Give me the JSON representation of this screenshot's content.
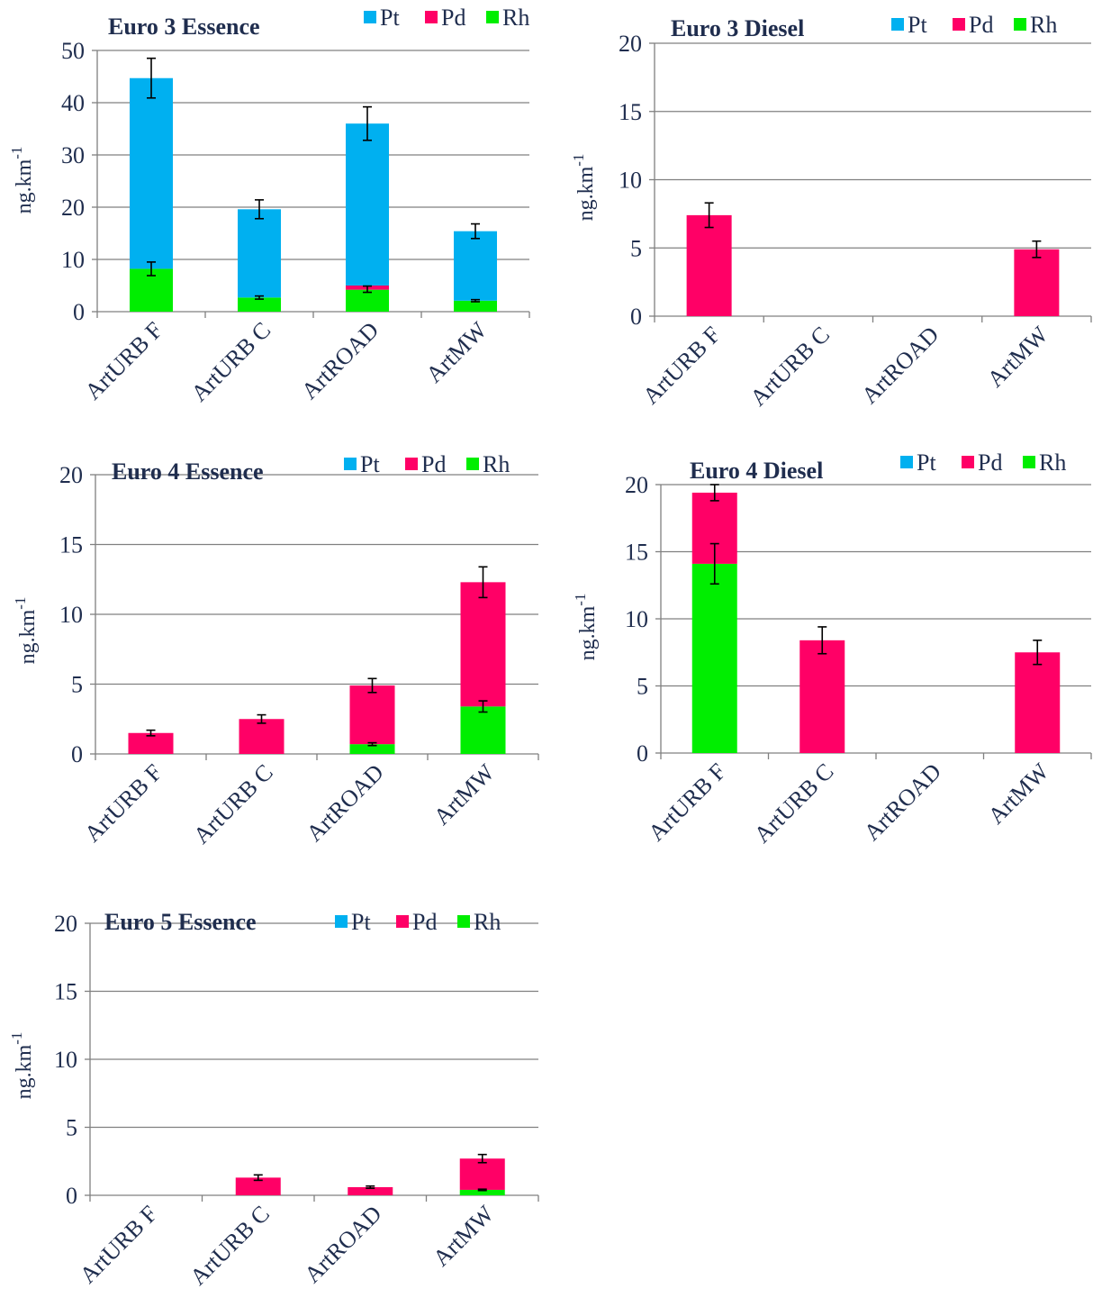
{
  "colors": {
    "Pt": "#00b0f0",
    "Pd": "#ff0066",
    "Rh": "#00ee00",
    "text": "#1f2d4e",
    "grid": "#808080",
    "axis": "#808080",
    "error": "#000000"
  },
  "chart_data": [
    {
      "type": "bar",
      "stacked": true,
      "title": "Euro 3 Essence",
      "ylabel": "ng.km",
      "ylabel_superscript": "-1",
      "categories": [
        "ArtURB F",
        "ArtURB C",
        "ArtROAD",
        "ArtMW"
      ],
      "ylim": [
        0,
        50
      ],
      "yticks": [
        "0",
        "10",
        "20",
        "30",
        "40",
        "50"
      ],
      "grid": true,
      "legend": "top-right",
      "series": [
        {
          "name": "Rh",
          "values": [
            8.2,
            2.7,
            4.2,
            2.1
          ]
        },
        {
          "name": "Pd",
          "values": [
            0,
            0,
            0.8,
            0
          ]
        },
        {
          "name": "Pt",
          "values": [
            36.5,
            16.9,
            31.0,
            13.3
          ]
        }
      ],
      "error_bars": [
        {
          "series": "Rh",
          "values": [
            8.2,
            2.7,
            4.3,
            2.1
          ],
          "err": [
            1.3,
            0.3,
            0.6,
            0.2
          ]
        },
        {
          "series": "Pt",
          "values": [
            44.7,
            19.6,
            36.0,
            15.4
          ],
          "err": [
            3.8,
            1.8,
            3.2,
            1.4
          ]
        }
      ]
    },
    {
      "type": "bar",
      "stacked": true,
      "title": "Euro 3 Diesel",
      "ylabel": "ng.km",
      "ylabel_superscript": "-1",
      "categories": [
        "ArtURB F",
        "ArtURB C",
        "ArtROAD",
        "ArtMW"
      ],
      "ylim": [
        0,
        20
      ],
      "yticks": [
        "0",
        "5",
        "10",
        "15",
        "20"
      ],
      "grid": true,
      "legend": "top-right",
      "series": [
        {
          "name": "Rh",
          "values": [
            0,
            0,
            0,
            0
          ]
        },
        {
          "name": "Pd",
          "values": [
            7.4,
            0,
            0,
            4.9
          ]
        },
        {
          "name": "Pt",
          "values": [
            0,
            0,
            0,
            0
          ]
        }
      ],
      "error_bars": [
        {
          "series": "Pd",
          "values": [
            7.4,
            null,
            null,
            4.9
          ],
          "err": [
            0.9,
            null,
            null,
            0.6
          ]
        }
      ]
    },
    {
      "type": "bar",
      "stacked": true,
      "title": "Euro 4 Essence",
      "ylabel": "ng.km",
      "ylabel_superscript": "-1",
      "categories": [
        "ArtURB F",
        "ArtURB C",
        "ArtROAD",
        "ArtMW"
      ],
      "ylim": [
        0,
        20
      ],
      "yticks": [
        "0",
        "5",
        "10",
        "15",
        "20"
      ],
      "grid": true,
      "legend": "top-right",
      "series": [
        {
          "name": "Rh",
          "values": [
            0,
            0,
            0.7,
            3.4
          ]
        },
        {
          "name": "Pd",
          "values": [
            1.5,
            2.5,
            4.2,
            8.9
          ]
        },
        {
          "name": "Pt",
          "values": [
            0,
            0,
            0,
            0
          ]
        }
      ],
      "error_bars": [
        {
          "series": "Rh",
          "values": [
            null,
            null,
            0.7,
            3.4
          ],
          "err": [
            null,
            null,
            0.1,
            0.4
          ]
        },
        {
          "series": "Pd",
          "values": [
            1.5,
            2.5,
            4.9,
            12.3
          ],
          "err": [
            0.2,
            0.3,
            0.5,
            1.1
          ]
        }
      ]
    },
    {
      "type": "bar",
      "stacked": true,
      "title": "Euro 4 Diesel",
      "ylabel": "ng.km",
      "ylabel_superscript": "-1",
      "categories": [
        "ArtURB F",
        "ArtURB C",
        "ArtROAD",
        "ArtMW"
      ],
      "ylim": [
        0,
        20
      ],
      "yticks": [
        "0",
        "5",
        "10",
        "15",
        "20"
      ],
      "grid": true,
      "legend": "top-right",
      "series": [
        {
          "name": "Rh",
          "values": [
            14.1,
            0,
            0,
            0
          ]
        },
        {
          "name": "Pd",
          "values": [
            5.3,
            8.4,
            0,
            7.5
          ]
        },
        {
          "name": "Pt",
          "values": [
            0,
            0,
            0,
            0
          ]
        }
      ],
      "error_bars": [
        {
          "series": "Rh",
          "values": [
            14.1,
            null,
            null,
            null
          ],
          "err": [
            1.5,
            null,
            null,
            null
          ]
        },
        {
          "series": "Pd",
          "values": [
            19.4,
            8.4,
            null,
            7.5
          ],
          "err": [
            0.6,
            1.0,
            null,
            0.9
          ]
        }
      ]
    },
    {
      "type": "bar",
      "stacked": true,
      "title": "Euro 5 Essence",
      "ylabel": "ng.km",
      "ylabel_superscript": "-1",
      "categories": [
        "ArtURB F",
        "ArtURB C",
        "ArtROAD",
        "ArtMW"
      ],
      "ylim": [
        0,
        20
      ],
      "yticks": [
        "0",
        "5",
        "10",
        "15",
        "20"
      ],
      "grid": true,
      "legend": "top-right",
      "series": [
        {
          "name": "Rh",
          "values": [
            0,
            0,
            0,
            0.4
          ]
        },
        {
          "name": "Pd",
          "values": [
            0,
            1.3,
            0.6,
            2.3
          ]
        },
        {
          "name": "Pt",
          "values": [
            0,
            0,
            0,
            0
          ]
        }
      ],
      "error_bars": [
        {
          "series": "Rh",
          "values": [
            null,
            null,
            null,
            0.4
          ],
          "err": [
            null,
            null,
            null,
            0.05
          ]
        },
        {
          "series": "Pd",
          "values": [
            null,
            1.3,
            0.6,
            2.7
          ],
          "err": [
            null,
            0.2,
            0.08,
            0.3
          ]
        }
      ]
    }
  ]
}
